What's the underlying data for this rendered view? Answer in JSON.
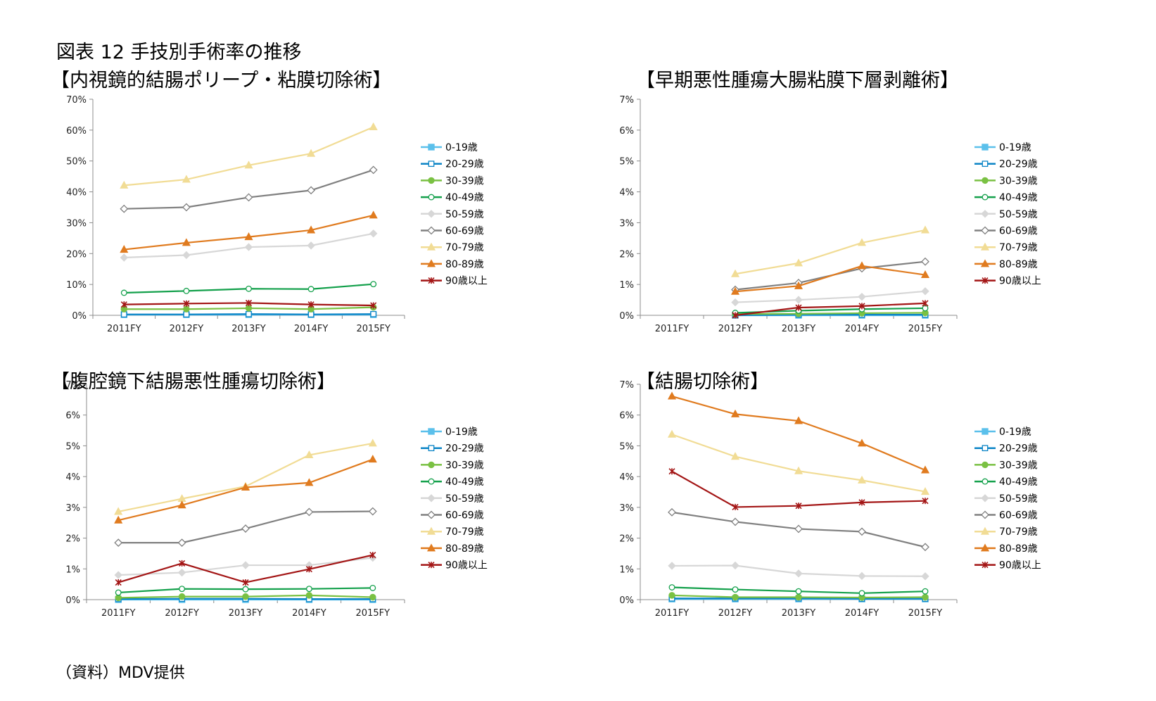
{
  "figure_title": "図表 12  手技別手術率の推移",
  "source_note": "（資料）MDV提供",
  "series_styles": {
    "0-19歳": {
      "color": "#5bc0eb",
      "marker": "square-filled"
    },
    "20-29歳": {
      "color": "#0b84c6",
      "marker": "square-open"
    },
    "30-39歳": {
      "color": "#7ac143",
      "marker": "circle-filled"
    },
    "40-49歳": {
      "color": "#13a04b",
      "marker": "circle-open"
    },
    "50-59歳": {
      "color": "#d7d7d7",
      "marker": "diamond-filled"
    },
    "60-69歳": {
      "color": "#808080",
      "marker": "diamond-open"
    },
    "70-79歳": {
      "color": "#f1dc95",
      "marker": "triangle"
    },
    "80-89歳": {
      "color": "#e07b1f",
      "marker": "triangle"
    },
    "90歳以上": {
      "color": "#a31515",
      "marker": "star"
    }
  },
  "chart_data": [
    {
      "type": "line",
      "title": "【内視鏡的結腸ポリープ・粘膜切除術】",
      "categories": [
        "2011FY",
        "2012FY",
        "2013FY",
        "2014FY",
        "2015FY"
      ],
      "ylim": [
        0,
        70
      ],
      "yticks": [
        "0%",
        "10%",
        "20%",
        "30%",
        "40%",
        "50%",
        "60%",
        "70%"
      ],
      "legend_position": "right",
      "grid": false,
      "series": [
        {
          "name": "0-19歳",
          "values": [
            0.2,
            0.2,
            0.2,
            0.2,
            0.2
          ]
        },
        {
          "name": "20-29歳",
          "values": [
            0.3,
            0.3,
            0.4,
            0.3,
            0.4
          ]
        },
        {
          "name": "30-39歳",
          "values": [
            2.0,
            2.0,
            2.3,
            2.0,
            2.6
          ]
        },
        {
          "name": "40-49歳",
          "values": [
            7.3,
            7.9,
            8.6,
            8.5,
            10.1
          ]
        },
        {
          "name": "50-59歳",
          "values": [
            18.7,
            19.5,
            22.1,
            22.6,
            26.5
          ]
        },
        {
          "name": "60-69歳",
          "values": [
            34.5,
            35.0,
            38.2,
            40.5,
            47.1
          ]
        },
        {
          "name": "70-79歳",
          "values": [
            42.1,
            44.0,
            48.6,
            52.4,
            61.0
          ]
        },
        {
          "name": "80-89歳",
          "values": [
            21.3,
            23.5,
            25.4,
            27.6,
            32.4
          ]
        },
        {
          "name": "90歳以上",
          "values": [
            3.5,
            3.8,
            4.0,
            3.5,
            3.2
          ]
        }
      ]
    },
    {
      "type": "line",
      "title": "【早期悪性腫瘍大腸粘膜下層剥離術】",
      "categories": [
        "2011FY",
        "2012FY",
        "2013FY",
        "2014FY",
        "2015FY"
      ],
      "ylim": [
        0,
        7
      ],
      "yticks": [
        "0%",
        "1%",
        "2%",
        "3%",
        "4%",
        "5%",
        "6%",
        "7%"
      ],
      "legend_position": "right",
      "grid": false,
      "series": [
        {
          "name": "0-19歳",
          "values": [
            null,
            0.0,
            0.0,
            0.0,
            0.0
          ]
        },
        {
          "name": "20-29歳",
          "values": [
            null,
            0.0,
            0.02,
            0.02,
            0.02
          ]
        },
        {
          "name": "30-39歳",
          "values": [
            null,
            0.04,
            0.05,
            0.07,
            0.08
          ]
        },
        {
          "name": "40-49歳",
          "values": [
            null,
            0.08,
            0.15,
            0.2,
            0.23
          ]
        },
        {
          "name": "50-59歳",
          "values": [
            null,
            0.42,
            0.5,
            0.6,
            0.78
          ]
        },
        {
          "name": "60-69歳",
          "values": [
            null,
            0.83,
            1.05,
            1.52,
            1.74
          ]
        },
        {
          "name": "70-79歳",
          "values": [
            null,
            1.34,
            1.69,
            2.35,
            2.76
          ]
        },
        {
          "name": "80-89歳",
          "values": [
            null,
            0.77,
            0.95,
            1.6,
            1.31
          ]
        },
        {
          "name": "90歳以上",
          "values": [
            null,
            0.0,
            0.25,
            0.3,
            0.39
          ]
        }
      ]
    },
    {
      "type": "line",
      "title": "【腹腔鏡下結腸悪性腫瘍切除術】",
      "categories": [
        "2011FY",
        "2012FY",
        "2013FY",
        "2014FY",
        "2015FY"
      ],
      "ylim": [
        0,
        7
      ],
      "yticks": [
        "0%",
        "1%",
        "2%",
        "3%",
        "4%",
        "5%",
        "6%",
        "7%"
      ],
      "legend_position": "right",
      "grid": false,
      "series": [
        {
          "name": "0-19歳",
          "values": [
            0.0,
            0.0,
            0.0,
            0.0,
            0.0
          ]
        },
        {
          "name": "20-29歳",
          "values": [
            0.02,
            0.03,
            0.03,
            0.02,
            0.02
          ]
        },
        {
          "name": "30-39歳",
          "values": [
            0.06,
            0.1,
            0.1,
            0.14,
            0.08
          ]
        },
        {
          "name": "40-49歳",
          "values": [
            0.23,
            0.35,
            0.34,
            0.35,
            0.38
          ]
        },
        {
          "name": "50-59歳",
          "values": [
            0.8,
            0.88,
            1.12,
            1.12,
            1.36
          ]
        },
        {
          "name": "60-69歳",
          "values": [
            1.85,
            1.85,
            2.31,
            2.85,
            2.87
          ]
        },
        {
          "name": "70-79歳",
          "values": [
            2.86,
            3.28,
            3.68,
            4.7,
            5.08
          ]
        },
        {
          "name": "80-89歳",
          "values": [
            2.58,
            3.07,
            3.65,
            3.8,
            4.56
          ]
        },
        {
          "name": "90歳以上",
          "values": [
            0.56,
            1.18,
            0.56,
            0.99,
            1.45
          ]
        }
      ]
    },
    {
      "type": "line",
      "title": "【結腸切除術】",
      "categories": [
        "2011FY",
        "2012FY",
        "2013FY",
        "2014FY",
        "2015FY"
      ],
      "ylim": [
        0,
        7
      ],
      "yticks": [
        "0%",
        "1%",
        "2%",
        "3%",
        "4%",
        "5%",
        "6%",
        "7%"
      ],
      "legend_position": "right",
      "grid": false,
      "series": [
        {
          "name": "0-19歳",
          "values": [
            0.02,
            0.02,
            0.02,
            0.02,
            0.02
          ]
        },
        {
          "name": "20-29歳",
          "values": [
            0.04,
            0.04,
            0.04,
            0.03,
            0.03
          ]
        },
        {
          "name": "30-39歳",
          "values": [
            0.14,
            0.08,
            0.08,
            0.07,
            0.08
          ]
        },
        {
          "name": "40-49歳",
          "values": [
            0.4,
            0.33,
            0.27,
            0.21,
            0.27
          ]
        },
        {
          "name": "50-59歳",
          "values": [
            1.1,
            1.11,
            0.85,
            0.77,
            0.76
          ]
        },
        {
          "name": "60-69歳",
          "values": [
            2.84,
            2.53,
            2.3,
            2.21,
            1.71
          ]
        },
        {
          "name": "70-79歳",
          "values": [
            5.37,
            4.65,
            4.18,
            3.88,
            3.51
          ]
        },
        {
          "name": "80-89歳",
          "values": [
            6.61,
            6.03,
            5.81,
            5.08,
            4.21
          ]
        },
        {
          "name": "90歳以上",
          "values": [
            4.17,
            3.01,
            3.05,
            3.16,
            3.21
          ]
        }
      ]
    }
  ]
}
